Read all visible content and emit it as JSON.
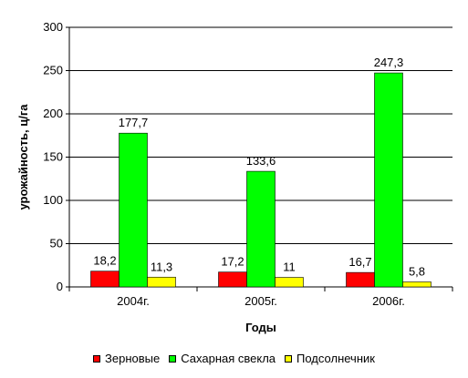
{
  "chart_data": {
    "type": "bar",
    "categories": [
      "2004г.",
      "2005г.",
      "2006г."
    ],
    "series": [
      {
        "name": "Зерновые",
        "values": [
          18.2,
          17.2,
          16.7
        ],
        "labels": [
          "18,2",
          "17,2",
          "16,7"
        ],
        "color": "#ff0000"
      },
      {
        "name": "Сахарная свекла",
        "values": [
          177.7,
          133.6,
          247.3
        ],
        "labels": [
          "177,7",
          "133,6",
          "247,3"
        ],
        "color": "#00ff00"
      },
      {
        "name": "Подсолнечник",
        "values": [
          11.3,
          11,
          5.8
        ],
        "labels": [
          "11,3",
          "11",
          "5,8"
        ],
        "color": "#ffff00"
      }
    ],
    "xlabel": "Годы",
    "ylabel": "урожайность, ц/га",
    "ylim": [
      0,
      300
    ],
    "yticks": [
      0,
      50,
      100,
      150,
      200,
      250,
      300
    ],
    "grid": true,
    "legend_position": "bottom"
  }
}
